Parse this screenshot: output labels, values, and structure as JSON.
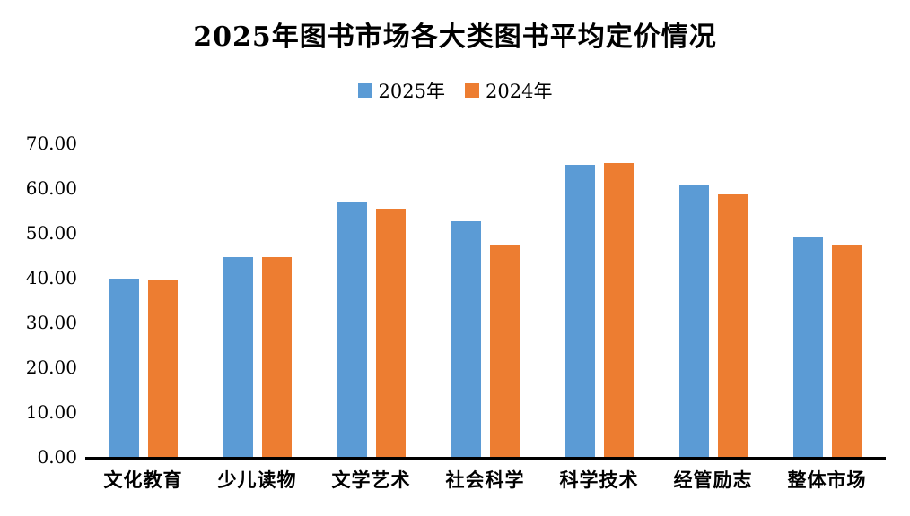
{
  "title": "2025年图书市场各大类图书平均定价情况",
  "legend": {
    "items": [
      {
        "label": "2025年",
        "color": "#5B9BD5"
      },
      {
        "label": "2024年",
        "color": "#ED7D31"
      }
    ]
  },
  "colors": {
    "series_2025": "#5B9BD5",
    "series_2024": "#ED7D31",
    "axis_line": "#000000",
    "text": "#000000",
    "background": "#FFFFFF"
  },
  "chart_data": {
    "type": "bar",
    "title": "2025年图书市场各大类图书平均定价情况",
    "categories": [
      "文化教育",
      "少儿读物",
      "文学艺术",
      "社会科学",
      "科学技术",
      "经管励志",
      "整体市场"
    ],
    "series": [
      {
        "name": "2025年",
        "color": "#5B9BD5",
        "values": [
          39.8,
          44.7,
          57.1,
          52.7,
          65.3,
          60.6,
          49.0
        ]
      },
      {
        "name": "2024年",
        "color": "#ED7D31",
        "values": [
          39.4,
          44.6,
          55.5,
          47.5,
          65.7,
          58.6,
          47.4
        ]
      }
    ],
    "xlabel": "",
    "ylabel": "",
    "ylim": [
      0,
      70
    ],
    "ytick_step": 10,
    "ytick_labels": [
      "0.00",
      "10.00",
      "20.00",
      "30.00",
      "40.00",
      "50.00",
      "60.00",
      "70.00"
    ],
    "grid": false,
    "legend_position": "top-center",
    "bar_orientation": "vertical"
  }
}
